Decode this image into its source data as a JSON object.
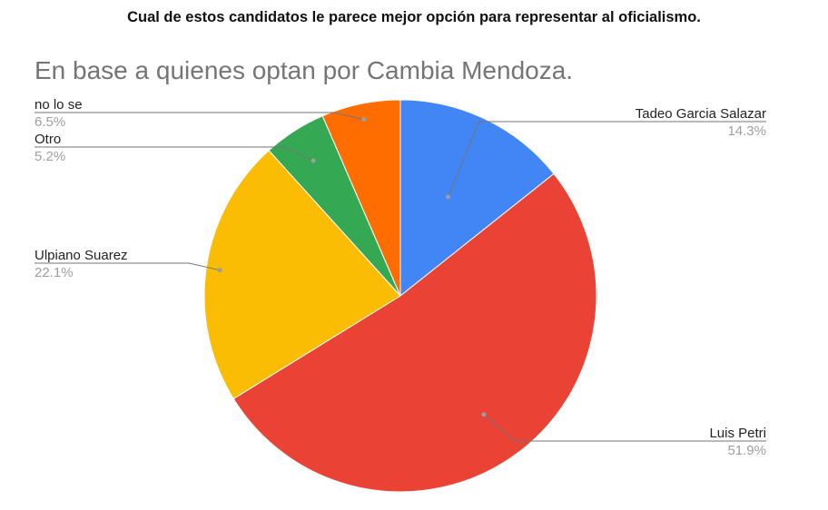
{
  "question": "Cual de estos candidatos le parece mejor opción para representar al oficialismo.",
  "chart_data": {
    "type": "pie",
    "title": "En base a quienes optan por Cambia Mendoza.",
    "slices": [
      {
        "label": "Tadeo Garcia Salazar",
        "value": 14.3,
        "value_label": "14.3%",
        "color": "#4285f4"
      },
      {
        "label": "Luis Petri",
        "value": 51.9,
        "value_label": "51.9%",
        "color": "#ea4335"
      },
      {
        "label": "Ulpiano Suarez",
        "value": 22.1,
        "value_label": "22.1%",
        "color": "#fbbc04"
      },
      {
        "label": "Otro",
        "value": 5.2,
        "value_label": "5.2%",
        "color": "#34a853"
      },
      {
        "label": "no lo se",
        "value": 6.5,
        "value_label": "6.5%",
        "color": "#ff6d01"
      }
    ],
    "start_angle": "12 o'clock",
    "direction": "clockwise",
    "legend": "labeled leader lines"
  }
}
